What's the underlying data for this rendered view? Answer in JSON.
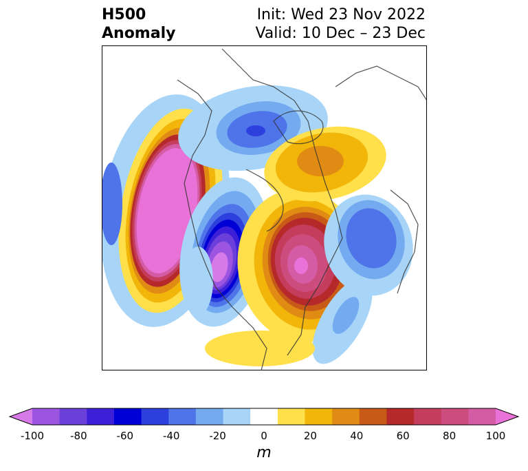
{
  "title": {
    "left_line1": "H500",
    "left_line2": "Anomaly",
    "init": "Init: Wed 23 Nov 2022",
    "valid": "Valid: 10 Dec – 23 Dec"
  },
  "colorbar": {
    "unit": "m",
    "ticks": [
      "-100",
      "-80",
      "-60",
      "-40",
      "-20",
      "0",
      "20",
      "40",
      "60",
      "80",
      "100"
    ],
    "colors": [
      "#d67ae8",
      "#9b55e0",
      "#6b3fd9",
      "#3e1fd8",
      "#0000d6",
      "#2d3fdc",
      "#4f73e8",
      "#73aaf0",
      "#a8d5f7",
      "#ffffff",
      "#ffe04a",
      "#f2b60a",
      "#e08b14",
      "#c85a18",
      "#b5292b",
      "#c43d5c",
      "#cc4d7d",
      "#d45ca4",
      "#e872d8"
    ]
  }
}
